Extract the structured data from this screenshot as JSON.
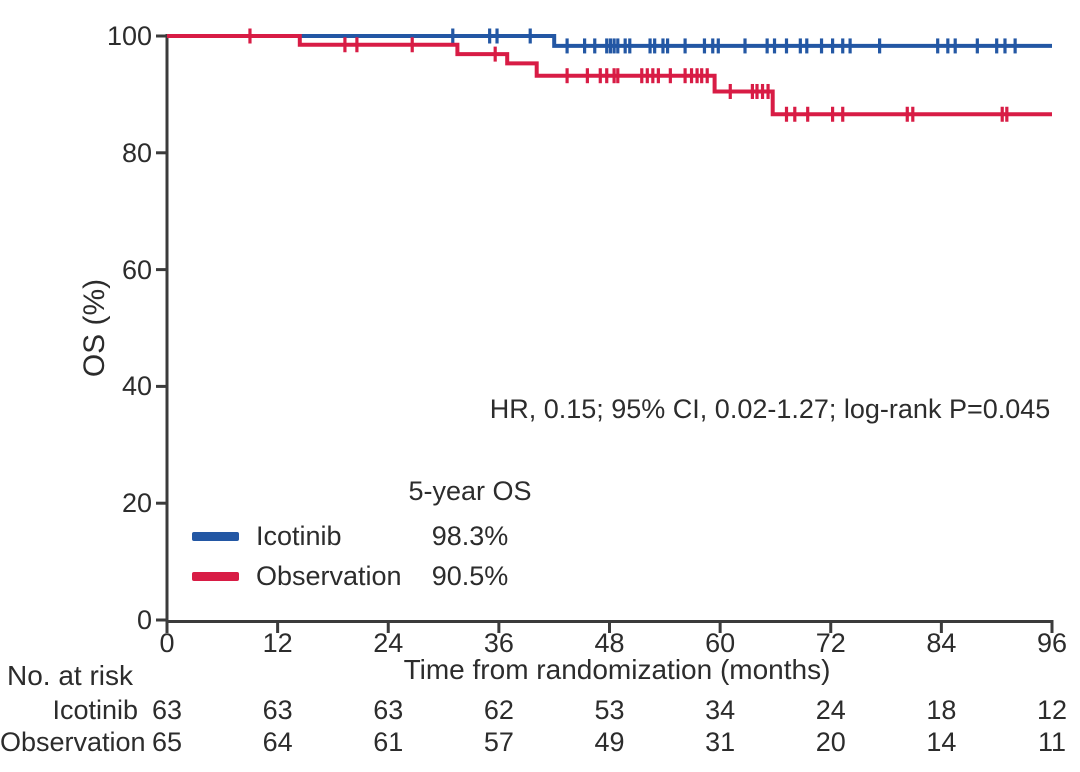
{
  "chart_data": {
    "type": "line",
    "subtype": "kaplan-meier-step-curve",
    "title": "",
    "xlabel": "Time from randomization (months)",
    "ylabel": "OS (%)",
    "xlim": [
      0,
      96
    ],
    "ylim": [
      0,
      100
    ],
    "xticks": [
      0,
      12,
      24,
      36,
      48,
      60,
      72,
      84,
      96
    ],
    "yticks": [
      0,
      20,
      40,
      60,
      80,
      100
    ],
    "grid": false,
    "annotation": "HR, 0.15; 95% CI, 0.02-1.27; log-rank P=0.045",
    "axis_color": "#3b3b3b",
    "legend": {
      "position": "lower-left-inside",
      "header": "5-year OS",
      "entries": [
        {
          "name": "Icotinib",
          "value": "98.3%",
          "color": "#2357a4"
        },
        {
          "name": "Observation",
          "value": "90.5%",
          "color": "#d81c45"
        }
      ]
    },
    "series": [
      {
        "name": "Icotinib",
        "color": "#2357a4",
        "steps": [
          [
            0,
            100
          ],
          [
            42,
            100
          ],
          [
            42,
            98.3
          ],
          [
            96,
            98.3
          ]
        ],
        "censors": [
          [
            31,
            100
          ],
          [
            35,
            100
          ],
          [
            35.8,
            100
          ],
          [
            39.4,
            100
          ],
          [
            43.4,
            98.3
          ],
          [
            45.3,
            98.3
          ],
          [
            46.4,
            98.3
          ],
          [
            47.7,
            98.3
          ],
          [
            48.1,
            98.3
          ],
          [
            48.5,
            98.3
          ],
          [
            48.9,
            98.3
          ],
          [
            49.7,
            98.3
          ],
          [
            50.2,
            98.3
          ],
          [
            52.4,
            98.3
          ],
          [
            52.9,
            98.3
          ],
          [
            53.8,
            98.3
          ],
          [
            54.3,
            98.3
          ],
          [
            56.2,
            98.3
          ],
          [
            58.3,
            98.3
          ],
          [
            59.2,
            98.3
          ],
          [
            59.8,
            98.3
          ],
          [
            62.7,
            98.3
          ],
          [
            65.1,
            98.3
          ],
          [
            65.9,
            98.3
          ],
          [
            67.2,
            98.3
          ],
          [
            68.7,
            98.3
          ],
          [
            69.4,
            98.3
          ],
          [
            71,
            98.3
          ],
          [
            72.2,
            98.3
          ],
          [
            73.3,
            98.3
          ],
          [
            74.1,
            98.3
          ],
          [
            77.3,
            98.3
          ],
          [
            83.6,
            98.3
          ],
          [
            84.7,
            98.3
          ],
          [
            85.5,
            98.3
          ],
          [
            87.9,
            98.3
          ],
          [
            90,
            98.3
          ],
          [
            90.9,
            98.3
          ],
          [
            92,
            98.3
          ]
        ]
      },
      {
        "name": "Observation",
        "color": "#d81c45",
        "steps": [
          [
            0,
            100
          ],
          [
            14.4,
            100
          ],
          [
            14.4,
            98.5
          ],
          [
            31.5,
            98.5
          ],
          [
            31.5,
            96.9
          ],
          [
            36.9,
            96.9
          ],
          [
            36.9,
            95.3
          ],
          [
            40.1,
            95.3
          ],
          [
            40.1,
            93.2
          ],
          [
            59.4,
            93.2
          ],
          [
            59.4,
            90.5
          ],
          [
            65.7,
            90.5
          ],
          [
            65.7,
            86.6
          ],
          [
            96,
            86.6
          ]
        ],
        "censors": [
          [
            9,
            100
          ],
          [
            19.3,
            98.5
          ],
          [
            20.6,
            98.5
          ],
          [
            26.6,
            98.5
          ],
          [
            35.6,
            96.9
          ],
          [
            43.4,
            93.2
          ],
          [
            45.6,
            93.2
          ],
          [
            47,
            93.2
          ],
          [
            47.7,
            93.2
          ],
          [
            48.5,
            93.2
          ],
          [
            48.9,
            93.2
          ],
          [
            51.5,
            93.2
          ],
          [
            52.1,
            93.2
          ],
          [
            52.7,
            93.2
          ],
          [
            53.3,
            93.2
          ],
          [
            54.6,
            93.2
          ],
          [
            56.2,
            93.2
          ],
          [
            56.9,
            93.2
          ],
          [
            57.5,
            93.2
          ],
          [
            58,
            93.2
          ],
          [
            58.6,
            93.2
          ],
          [
            61.1,
            90.5
          ],
          [
            63.5,
            90.5
          ],
          [
            64,
            90.5
          ],
          [
            64.6,
            90.5
          ],
          [
            65.2,
            90.5
          ],
          [
            67.2,
            86.6
          ],
          [
            68.1,
            86.6
          ],
          [
            69.5,
            86.6
          ],
          [
            72.2,
            86.6
          ],
          [
            73.3,
            86.6
          ],
          [
            80.3,
            86.6
          ],
          [
            80.9,
            86.6
          ],
          [
            90.6,
            86.6
          ],
          [
            91.1,
            86.6
          ]
        ]
      }
    ],
    "risk_table": {
      "label": "No. at risk",
      "times": [
        0,
        12,
        24,
        36,
        48,
        60,
        72,
        84,
        96
      ],
      "rows": [
        {
          "name": "Icotinib",
          "values": [
            63,
            63,
            63,
            62,
            53,
            34,
            24,
            18,
            12
          ]
        },
        {
          "name": "Observation",
          "values": [
            65,
            64,
            61,
            57,
            49,
            31,
            20,
            14,
            11
          ]
        }
      ]
    }
  }
}
